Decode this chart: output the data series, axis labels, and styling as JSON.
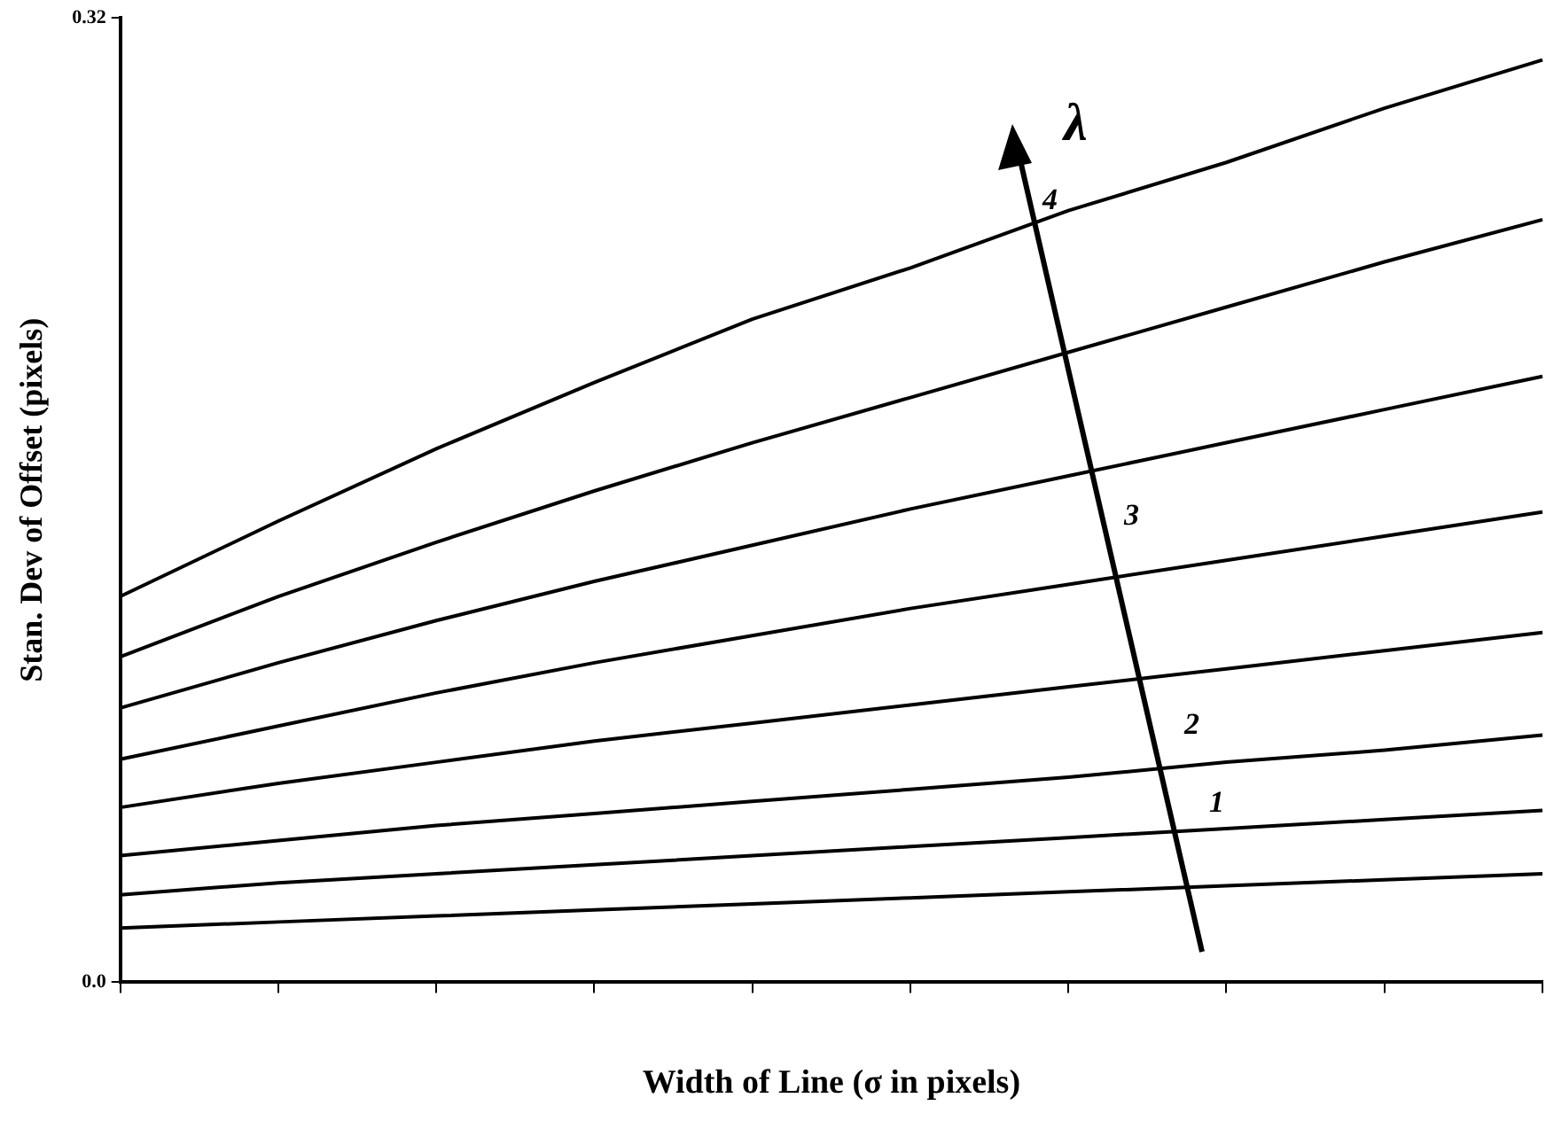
{
  "chart_data": {
    "type": "line",
    "xlabel": "Width of Line (σ in pixels)",
    "ylabel": "Stan. Dev of Offset (pixels)",
    "categories": [
      null,
      null,
      null,
      null,
      null,
      null,
      null,
      null,
      null,
      null
    ],
    "ylim": [
      0,
      0.32
    ],
    "yticks": [
      {
        "value": 0,
        "label": "0.0"
      },
      0.32
    ],
    "grid": false,
    "marker": "none",
    "annotations": [
      "λ",
      "4",
      "3",
      "2",
      "1"
    ],
    "series": [
      {
        "color": "#000000",
        "values": [
          0.018,
          0.02,
          0.022,
          0.024,
          0.026,
          0.028,
          0.03,
          0.032,
          0.034,
          0.036
        ]
      },
      {
        "color": "#000000",
        "values": [
          0.029,
          0.033,
          0.036,
          0.039,
          0.042,
          0.045,
          0.048,
          0.051,
          0.054,
          0.057
        ]
      },
      {
        "color": "#000000",
        "values": [
          0.042,
          0.047,
          0.052,
          0.056,
          0.06,
          0.064,
          0.068,
          0.073,
          0.077,
          0.082
        ]
      },
      {
        "color": "#000000",
        "values": [
          0.058,
          0.066,
          0.073,
          0.08,
          0.086,
          0.092,
          0.098,
          0.104,
          0.11,
          0.116
        ]
      },
      {
        "color": "#000000",
        "values": [
          0.074,
          0.085,
          0.096,
          0.106,
          0.115,
          0.124,
          0.132,
          0.14,
          0.148,
          0.156
        ]
      },
      {
        "color": "#000000",
        "values": [
          0.091,
          0.106,
          0.12,
          0.133,
          0.145,
          0.157,
          0.168,
          0.179,
          0.19,
          0.201
        ]
      },
      {
        "color": "#000000",
        "values": [
          0.108,
          0.128,
          0.146,
          0.163,
          0.179,
          0.194,
          0.209,
          0.224,
          0.239,
          0.253
        ]
      },
      {
        "color": "#000000",
        "values": [
          0.128,
          0.153,
          0.177,
          0.199,
          0.22,
          0.237,
          0.256,
          0.272,
          0.29,
          0.306
        ]
      }
    ]
  }
}
